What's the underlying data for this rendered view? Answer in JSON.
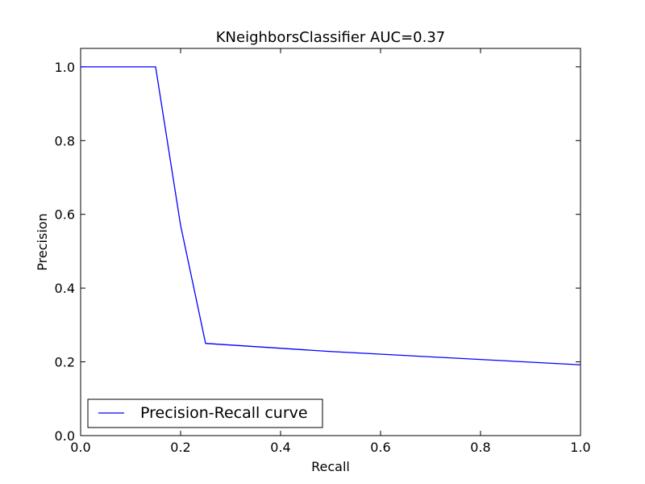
{
  "chart_data": {
    "type": "line",
    "title": "KNeighborsClassifier AUC=0.37",
    "xlabel": "Recall",
    "ylabel": "Precision",
    "xlim": [
      0,
      1
    ],
    "ylim": [
      0,
      1.05
    ],
    "xticks": [
      0.0,
      0.2,
      0.4,
      0.6,
      0.8,
      1.0
    ],
    "xtick_labels": [
      "0.0",
      "0.2",
      "0.4",
      "0.6",
      "0.8",
      "1.0"
    ],
    "yticks": [
      0.0,
      0.2,
      0.4,
      0.6,
      0.8,
      1.0
    ],
    "ytick_labels": [
      "0.0",
      "0.2",
      "0.4",
      "0.6",
      "0.8",
      "1.0"
    ],
    "grid": false,
    "legend_position": "lower-left",
    "series": [
      {
        "name": "Precision-Recall curve",
        "color": "#0000ff",
        "x": [
          0.0,
          0.15,
          0.2,
          0.25,
          0.5,
          1.0
        ],
        "y": [
          1.0,
          1.0,
          0.57,
          0.25,
          0.228,
          0.192
        ]
      }
    ]
  }
}
